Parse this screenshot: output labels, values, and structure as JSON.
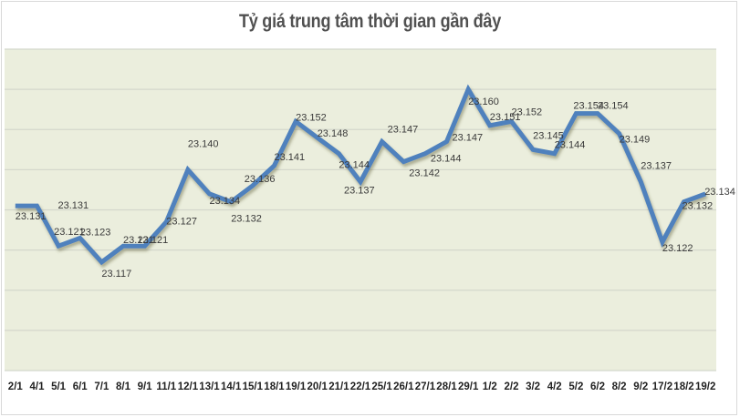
{
  "chart_data": {
    "type": "line",
    "title": "Tỷ giá trung tâm thời gian gần đây",
    "xlabel": "",
    "ylabel": "",
    "ylim": [
      23.09,
      23.17
    ],
    "grid": true,
    "legend": "none",
    "categories": [
      "2/1",
      "4/1",
      "5/1",
      "6/1",
      "7/1",
      "8/1",
      "9/1",
      "11/1",
      "12/1",
      "13/1",
      "14/1",
      "15/1",
      "18/1",
      "19/1",
      "20/1",
      "21/1",
      "22/1",
      "25/1",
      "26/1",
      "27/1",
      "28/1",
      "29/1",
      "1/2",
      "2/2",
      "3/2",
      "4/2",
      "5/2",
      "6/2",
      "8/2",
      "9/2",
      "17/2",
      "18/2",
      "19/2"
    ],
    "series": [
      {
        "name": "Tỷ giá trung tâm",
        "color": "#4f81bd",
        "values": [
          23.131,
          23.131,
          23.121,
          23.123,
          23.117,
          23.121,
          23.121,
          23.127,
          23.14,
          23.134,
          23.132,
          23.136,
          23.141,
          23.152,
          23.148,
          23.144,
          23.137,
          23.147,
          23.142,
          23.144,
          23.147,
          23.16,
          23.151,
          23.152,
          23.145,
          23.144,
          23.154,
          23.154,
          23.149,
          23.137,
          23.122,
          23.132,
          23.134
        ],
        "labels": [
          "23.131",
          "23.131",
          "23.121",
          "23.123",
          "23.117",
          "23.121",
          "23.121",
          "23.127",
          "23.140",
          "23.134",
          "23.132",
          "23.136",
          "23.141",
          "23.152",
          "23.148",
          "23.144",
          "23.137",
          "23.147",
          "23.142",
          "23.144",
          "23.147",
          "23.160",
          "23.151",
          "23.152",
          "23.145",
          "23.144",
          "23.154",
          "23.154",
          "23.149",
          "23.137",
          "23.122",
          "23.132",
          "23.134"
        ]
      }
    ]
  },
  "colors": {
    "plot_bg": "#ebeedd",
    "grid": "#d4d7cc",
    "line": "#4f81bd",
    "text": "#3a3a3a"
  }
}
